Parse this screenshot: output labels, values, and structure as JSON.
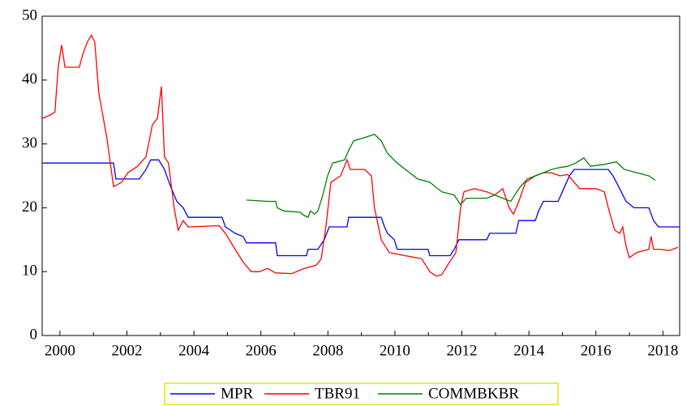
{
  "chart_data": {
    "type": "line",
    "xlim": [
      1999.47,
      2018.5
    ],
    "xticks": [
      2000,
      2002,
      2004,
      2006,
      2008,
      2010,
      2012,
      2014,
      2016,
      2018
    ],
    "minor_xticks": [
      2001,
      2003,
      2005,
      2007,
      2009,
      2011,
      2013,
      2015,
      2017
    ],
    "ylim": [
      0,
      50
    ],
    "yticks": [
      0,
      10,
      20,
      30,
      40,
      50
    ],
    "grid": false,
    "legend": "bottom",
    "series": [
      {
        "name": "MPR",
        "color": "#0000ff",
        "x": [
          1999.47,
          2001.6,
          2001.67,
          2002.37,
          2002.57,
          2002.71,
          2002.95,
          2003.12,
          2003.29,
          2003.49,
          2003.68,
          2003.83,
          2004.84,
          2004.94,
          2005.23,
          2005.47,
          2005.57,
          2006.44,
          2006.49,
          2007.36,
          2007.41,
          2007.7,
          2007.89,
          2008.04,
          2008.57,
          2008.62,
          2009.59,
          2009.69,
          2009.78,
          2009.98,
          2010.07,
          2010.99,
          2011.04,
          2011.65,
          2011.77,
          2011.91,
          2012.74,
          2012.83,
          2013.61,
          2013.7,
          2014.19,
          2014.29,
          2014.43,
          2014.87,
          2015.04,
          2015.21,
          2015.35,
          2016.37,
          2016.51,
          2016.71,
          2016.9,
          2017.14,
          2017.58,
          2017.72,
          2017.87,
          2018.5
        ],
        "values": [
          27,
          27,
          24.5,
          24.5,
          26,
          27.5,
          27.5,
          26,
          23.5,
          21,
          20,
          18.5,
          18.5,
          17,
          16,
          15.5,
          14.5,
          14.5,
          12.5,
          12.5,
          13.5,
          13.5,
          15,
          17,
          17,
          18.5,
          18.5,
          17,
          16,
          15,
          13.5,
          13.5,
          12.5,
          12.5,
          13.5,
          15,
          15,
          16,
          16,
          18,
          18,
          19.5,
          21,
          21,
          23,
          25,
          26,
          26,
          25,
          23,
          21,
          20,
          20,
          18,
          17,
          17
        ]
      },
      {
        "name": "TBR91",
        "color": "#ff0000",
        "x": [
          1999.47,
          1999.71,
          1999.85,
          1999.95,
          2000.05,
          2000.15,
          2000.29,
          2000.58,
          2000.68,
          2000.82,
          2000.94,
          2001.04,
          2001.16,
          2001.4,
          2001.6,
          2001.84,
          2002.03,
          2002.32,
          2002.57,
          2002.76,
          2002.91,
          2003.03,
          2003.12,
          2003.24,
          2003.41,
          2003.53,
          2003.68,
          2003.83,
          2004.75,
          2004.94,
          2005.23,
          2005.47,
          2005.71,
          2005.96,
          2006.2,
          2006.44,
          2006.92,
          2007.29,
          2007.65,
          2007.8,
          2007.94,
          2008.09,
          2008.38,
          2008.57,
          2008.67,
          2009.1,
          2009.3,
          2009.39,
          2009.59,
          2009.83,
          2010.31,
          2010.8,
          2011.04,
          2011.23,
          2011.4,
          2011.57,
          2011.82,
          2011.96,
          2012.06,
          2012.37,
          2012.74,
          2012.98,
          2013.22,
          2013.41,
          2013.54,
          2013.7,
          2013.9,
          2014.19,
          2014.43,
          2014.67,
          2014.92,
          2015.16,
          2015.35,
          2015.52,
          2016.0,
          2016.25,
          2016.37,
          2016.56,
          2016.71,
          2016.8,
          2016.9,
          2017.0,
          2017.22,
          2017.58,
          2017.65,
          2017.72,
          2017.94,
          2018.18,
          2018.45
        ],
        "values": [
          34,
          34.5,
          35,
          42,
          45.5,
          42,
          42,
          42,
          44,
          46,
          47,
          46,
          38,
          31,
          23.3,
          24,
          25.5,
          26.5,
          28,
          33,
          34,
          39,
          28,
          27,
          20,
          16.5,
          18,
          17,
          17.2,
          16,
          13.5,
          11.5,
          10,
          10,
          10.5,
          9.8,
          9.7,
          10.5,
          11,
          12,
          17,
          24,
          25,
          27.5,
          26,
          26,
          25,
          20,
          15,
          13,
          12.5,
          12,
          10,
          9.3,
          9.5,
          11,
          13,
          20,
          22.5,
          23,
          22.5,
          22,
          23,
          20,
          19,
          21,
          24,
          25,
          25.5,
          25.5,
          25,
          25.2,
          24,
          23,
          23,
          22.5,
          20,
          16.5,
          16,
          17,
          14,
          12.2,
          13,
          13.5,
          15.5,
          13.5,
          13.5,
          13.3,
          13.8
        ]
      },
      {
        "name": "COMMBKBR",
        "color": "#008000",
        "x": [
          2005.57,
          2006.2,
          2006.44,
          2006.49,
          2006.68,
          2007.17,
          2007.29,
          2007.41,
          2007.48,
          2007.6,
          2007.7,
          2007.85,
          2007.99,
          2008.14,
          2008.5,
          2008.62,
          2008.77,
          2009.1,
          2009.39,
          2009.59,
          2009.78,
          2010.07,
          2010.44,
          2010.68,
          2011.04,
          2011.4,
          2011.77,
          2011.96,
          2012.13,
          2012.74,
          2012.98,
          2013.22,
          2013.46,
          2013.7,
          2013.95,
          2014.19,
          2014.43,
          2014.67,
          2014.92,
          2015.16,
          2015.4,
          2015.64,
          2015.84,
          2016.25,
          2016.61,
          2016.85,
          2017.22,
          2017.58,
          2017.77
        ],
        "values": [
          21.2,
          21,
          21,
          20,
          19.5,
          19.3,
          18.8,
          18.5,
          19.5,
          19,
          19.5,
          22,
          25,
          27,
          27.5,
          29,
          30.5,
          31,
          31.5,
          30.5,
          28.5,
          27,
          25.5,
          24.5,
          24,
          22.5,
          22,
          20.5,
          21.5,
          21.5,
          22,
          21.5,
          21,
          23,
          24.5,
          25,
          25.5,
          26,
          26.3,
          26.5,
          27,
          27.8,
          26.5,
          26.8,
          27.2,
          26,
          25.5,
          25,
          24.3
        ]
      }
    ]
  }
}
